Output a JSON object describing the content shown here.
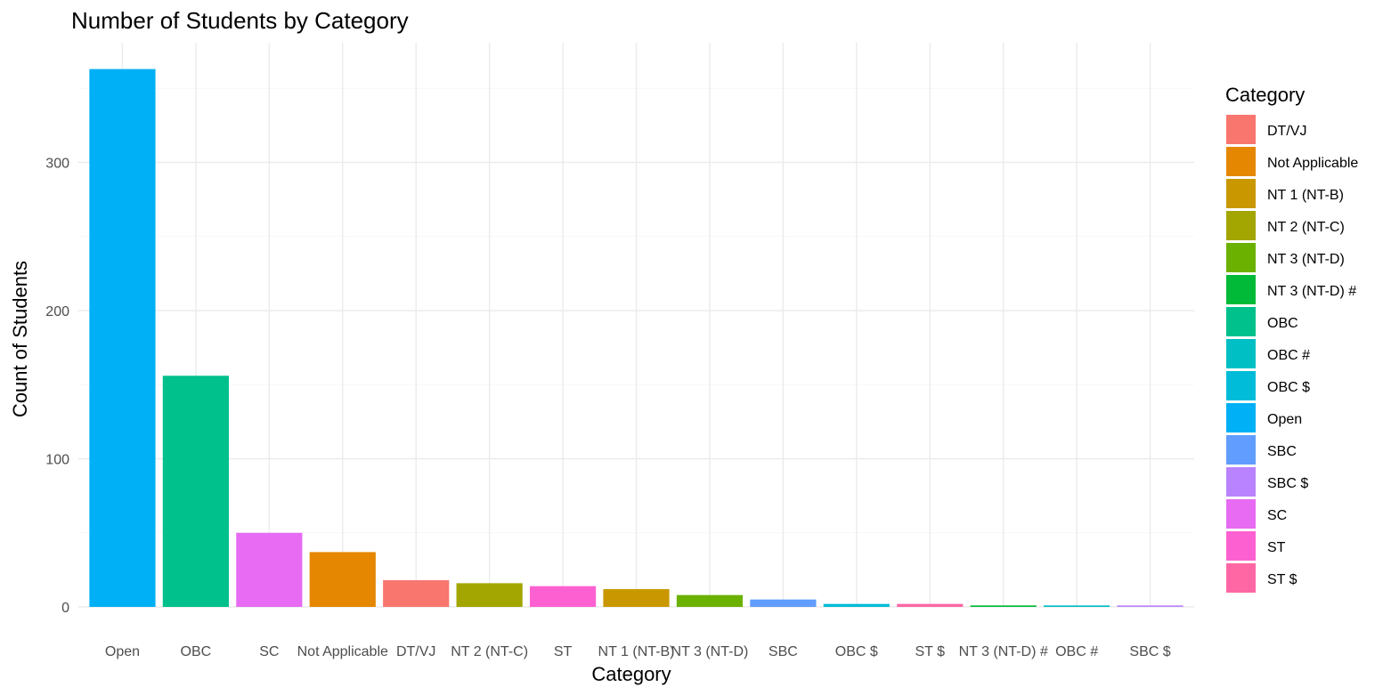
{
  "chart_data": {
    "type": "bar",
    "title": "Number of Students by Category",
    "xlabel": "Category",
    "ylabel": "Count of Students",
    "ylim": [
      0,
      372
    ],
    "yticks": [
      0,
      100,
      200,
      300
    ],
    "grid": true,
    "legend_placement": "right",
    "legend_title": "Category",
    "categories": [
      "Open",
      "OBC",
      "SC",
      "Not Applicable",
      "DT/VJ",
      "NT 2 (NT-C)",
      "ST",
      "NT 1 (NT-B)",
      "NT 3 (NT-D)",
      "SBC",
      "OBC $",
      "ST $",
      "NT 3 (NT-D) #",
      "OBC #",
      "SBC $"
    ],
    "values": [
      363,
      156,
      50,
      37,
      18,
      16,
      14,
      12,
      8,
      5,
      2,
      2,
      1,
      1,
      1
    ],
    "legend": [
      {
        "label": "DT/VJ",
        "color": "#F8766D"
      },
      {
        "label": "Not Applicable",
        "color": "#E58700"
      },
      {
        "label": "NT 1 (NT-B)",
        "color": "#C99800"
      },
      {
        "label": "NT 2 (NT-C)",
        "color": "#A3A500"
      },
      {
        "label": "NT 3 (NT-D)",
        "color": "#6BB100"
      },
      {
        "label": "NT 3 (NT-D) #",
        "color": "#00BA38"
      },
      {
        "label": "OBC",
        "color": "#00C08B"
      },
      {
        "label": "OBC #",
        "color": "#00BFC4"
      },
      {
        "label": "OBC $",
        "color": "#00BCD8"
      },
      {
        "label": "Open",
        "color": "#00B0F6"
      },
      {
        "label": "SBC",
        "color": "#619CFF"
      },
      {
        "label": "SBC $",
        "color": "#B983FF"
      },
      {
        "label": "SC",
        "color": "#E76BF3"
      },
      {
        "label": "ST",
        "color": "#FD61D1"
      },
      {
        "label": "ST $",
        "color": "#FF67A4"
      }
    ]
  }
}
